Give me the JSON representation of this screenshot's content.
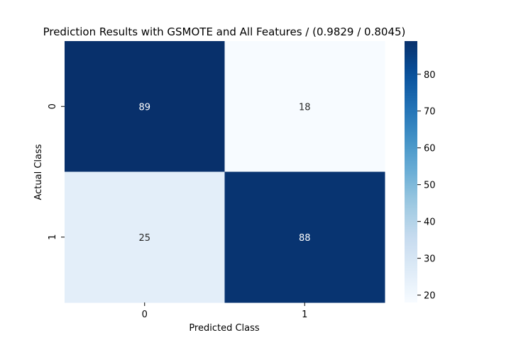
{
  "chart_data": {
    "type": "heatmap",
    "title": "Prediction Results with GSMOTE and All Features / (0.9829 / 0.8045)",
    "xlabel": "Predicted Class",
    "ylabel": "Actual Class",
    "x_categories": [
      "0",
      "1"
    ],
    "y_categories": [
      "0",
      "1"
    ],
    "values": [
      [
        89,
        18
      ],
      [
        25,
        88
      ]
    ],
    "colormap": "Blues",
    "color_range": [
      18,
      89
    ],
    "colorbar_ticks": [
      20,
      30,
      40,
      50,
      60,
      70,
      80
    ],
    "cell_annotations": true,
    "grid": false,
    "colors": {
      "low": "#f7fbff",
      "high": "#08306b",
      "annotation_on_dark": "#ffffff",
      "annotation_on_light": "#262626"
    }
  }
}
